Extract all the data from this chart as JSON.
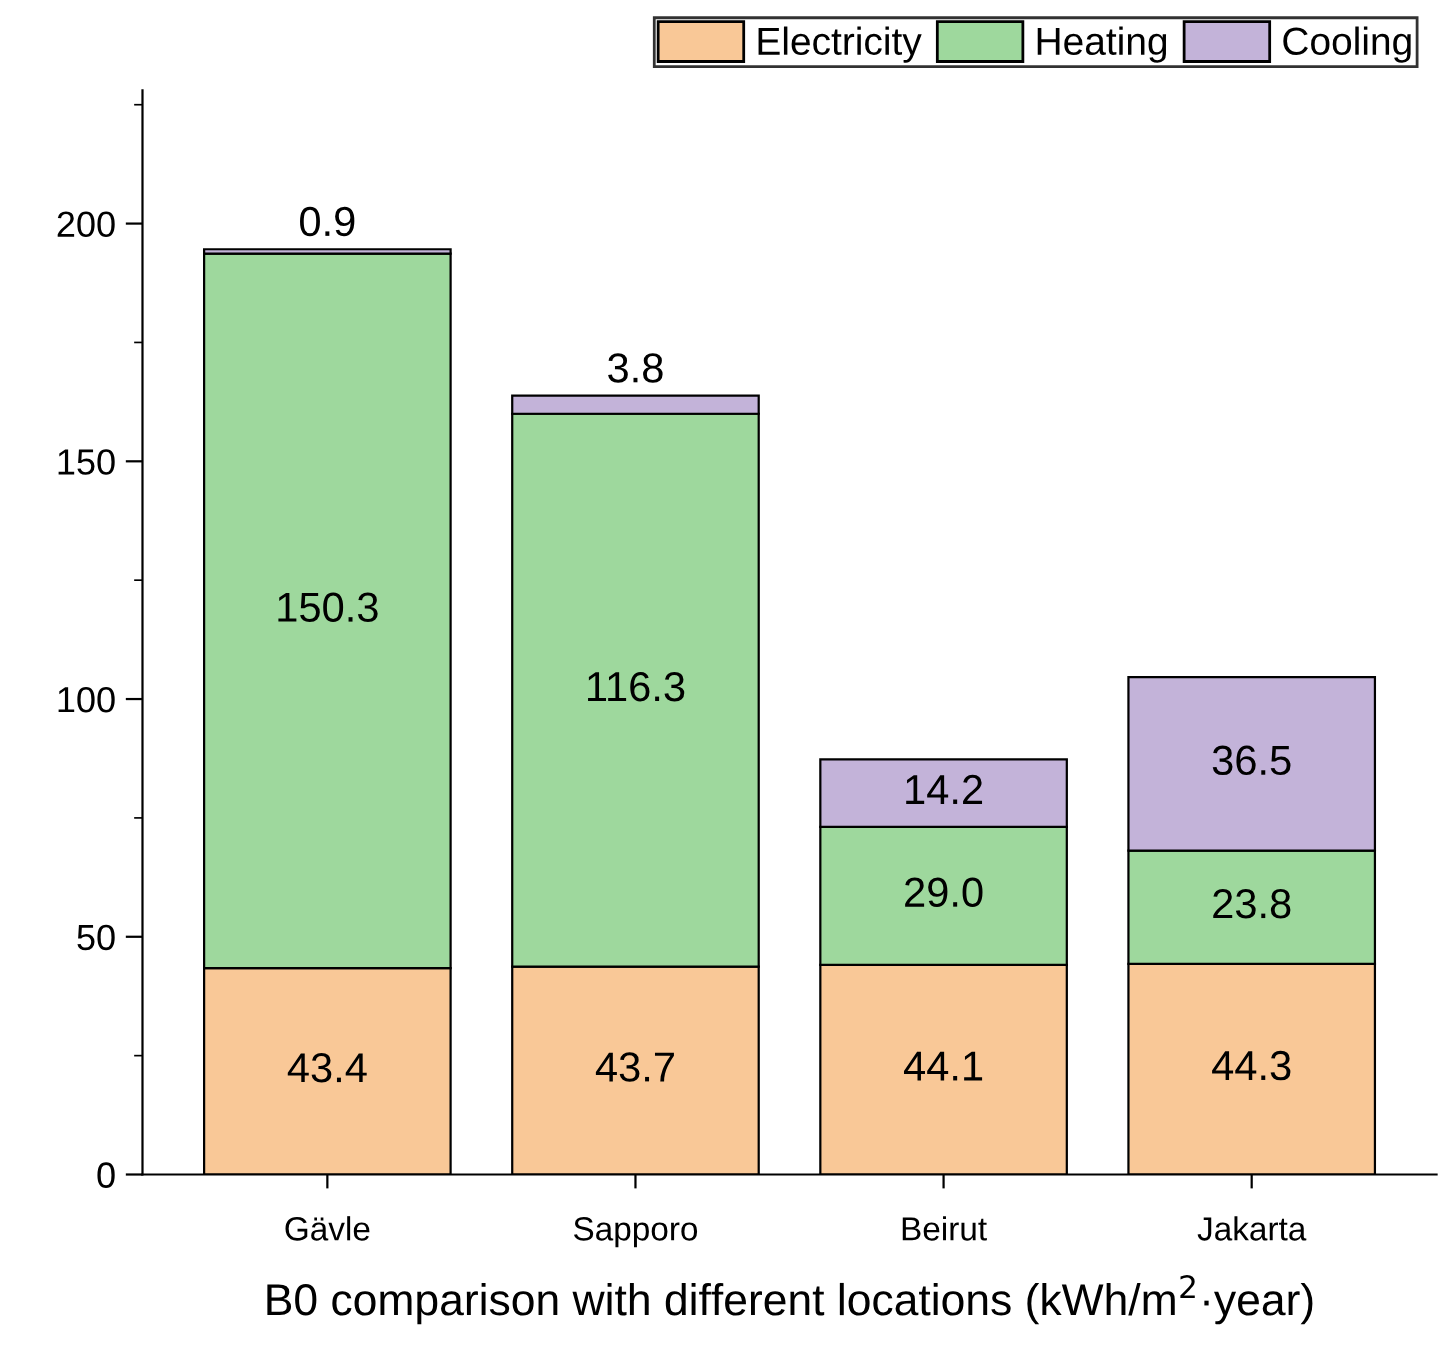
{
  "chart_data": {
    "type": "bar",
    "stacked": true,
    "xlabel": "B0 comparison with different locations (kWh/m$^{2}$·year)",
    "categories": [
      "Gävle",
      "Sapporo",
      "Beirut",
      "Jakarta"
    ],
    "series": [
      {
        "name": "Electricity",
        "color": "#f9c897",
        "values": [
          43.4,
          43.7,
          44.1,
          44.3
        ],
        "value_labels": [
          "43.4",
          "43.7",
          "44.1",
          "44.3"
        ]
      },
      {
        "name": "Heating",
        "color": "#9ed89d",
        "values": [
          150.3,
          116.3,
          29.0,
          23.8
        ],
        "value_labels": [
          "150.3",
          "116.3",
          "29.0",
          "23.8"
        ]
      },
      {
        "name": "Cooling",
        "color": "#c3b3d9",
        "values": [
          0.9,
          3.8,
          14.2,
          36.5
        ],
        "value_labels": [
          "0.9",
          "3.8",
          "14.2",
          "36.5"
        ]
      }
    ],
    "ylim": [
      0,
      228
    ],
    "yticks": [
      0,
      50,
      100,
      150,
      200
    ],
    "legend": "top",
    "grid": false
  }
}
